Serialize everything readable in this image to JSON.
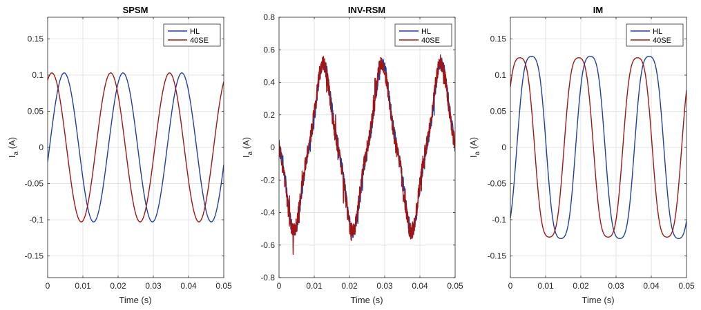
{
  "chart_data": [
    {
      "type": "line",
      "title": "SPSM",
      "xlabel": "Time (s)",
      "ylabel_main": "I",
      "ylabel_sub": "a",
      "ylabel_unit": " (A)",
      "xlim": [
        0,
        0.05
      ],
      "ylim": [
        -0.18,
        0.18
      ],
      "xticks": [
        0,
        0.01,
        0.02,
        0.03,
        0.04,
        0.05
      ],
      "xtick_labels": [
        "0",
        "0.01",
        "0.02",
        "0.03",
        "0.04",
        "0.05"
      ],
      "yticks": [
        -0.15,
        -0.1,
        -0.05,
        0,
        0.05,
        0.1,
        0.15
      ],
      "ytick_labels": [
        "-0.15",
        "-0.1",
        "-0.05",
        "0",
        "0.05",
        "0.1",
        "0.15"
      ],
      "grid": true,
      "legend": "top-right",
      "series": [
        {
          "name": "HL",
          "color": "#1f3fa0",
          "wave": {
            "amplitude": 0.103,
            "period": 0.0167,
            "peak_t": 0.0047,
            "harmonic3": 0.0,
            "noise": 0.0
          }
        },
        {
          "name": "40SE",
          "color": "#a01515",
          "wave": {
            "amplitude": 0.103,
            "period": 0.0167,
            "peak_t": 0.0012,
            "harmonic3": 0.0,
            "noise": 0.0
          }
        }
      ]
    },
    {
      "type": "line",
      "title": "INV-RSM",
      "xlabel": "Time (s)",
      "ylabel_main": "I",
      "ylabel_sub": "a",
      "ylabel_unit": " (A)",
      "xlim": [
        0,
        0.05
      ],
      "ylim": [
        -0.8,
        0.8
      ],
      "xticks": [
        0,
        0.01,
        0.02,
        0.03,
        0.04,
        0.05
      ],
      "xtick_labels": [
        "0",
        "0.01",
        "0.02",
        "0.03",
        "0.04",
        "0.05"
      ],
      "yticks": [
        -0.8,
        -0.6,
        -0.4,
        -0.2,
        0,
        0.2,
        0.4,
        0.6,
        0.8
      ],
      "ytick_labels": [
        "-0.8",
        "-0.6",
        "-0.4",
        "-0.2",
        "0",
        "0.2",
        "0.4",
        "0.6",
        "0.8"
      ],
      "grid": true,
      "legend": "top-right",
      "series": [
        {
          "name": "HL",
          "color": "#1f3fa0",
          "wave": {
            "amplitude": 0.46,
            "period": 0.0167,
            "peak_t": 0.0127,
            "harmonic3": 0.06,
            "noise": 0.035
          }
        },
        {
          "name": "40SE",
          "color": "#a01515",
          "wave": {
            "amplitude": 0.46,
            "period": 0.0167,
            "peak_t": 0.0125,
            "harmonic3": 0.06,
            "noise": 0.05
          }
        }
      ]
    },
    {
      "type": "line",
      "title": "IM",
      "xlabel": "Time (s)",
      "ylabel_main": "I",
      "ylabel_sub": "a",
      "ylabel_unit": " (A)",
      "xlim": [
        0,
        0.05
      ],
      "ylim": [
        -0.18,
        0.18
      ],
      "xticks": [
        0,
        0.01,
        0.02,
        0.03,
        0.04,
        0.05
      ],
      "xtick_labels": [
        "0",
        "0.01",
        "0.02",
        "0.03",
        "0.04",
        "0.05"
      ],
      "yticks": [
        -0.15,
        -0.1,
        -0.05,
        0,
        0.05,
        0.1,
        0.15
      ],
      "ytick_labels": [
        "-0.15",
        "-0.1",
        "-0.05",
        "0",
        "0.05",
        "0.1",
        "0.15"
      ],
      "grid": true,
      "legend": "top-right",
      "series": [
        {
          "name": "HL",
          "color": "#1f3fa0",
          "wave": {
            "amplitude": 0.138,
            "period": 0.0167,
            "peak_t": 0.006,
            "harmonic3": 0.012,
            "noise": 0.0
          }
        },
        {
          "name": "40SE",
          "color": "#a01515",
          "wave": {
            "amplitude": 0.136,
            "period": 0.0167,
            "peak_t": 0.0027,
            "harmonic3": 0.012,
            "noise": 0.0
          }
        }
      ]
    }
  ]
}
